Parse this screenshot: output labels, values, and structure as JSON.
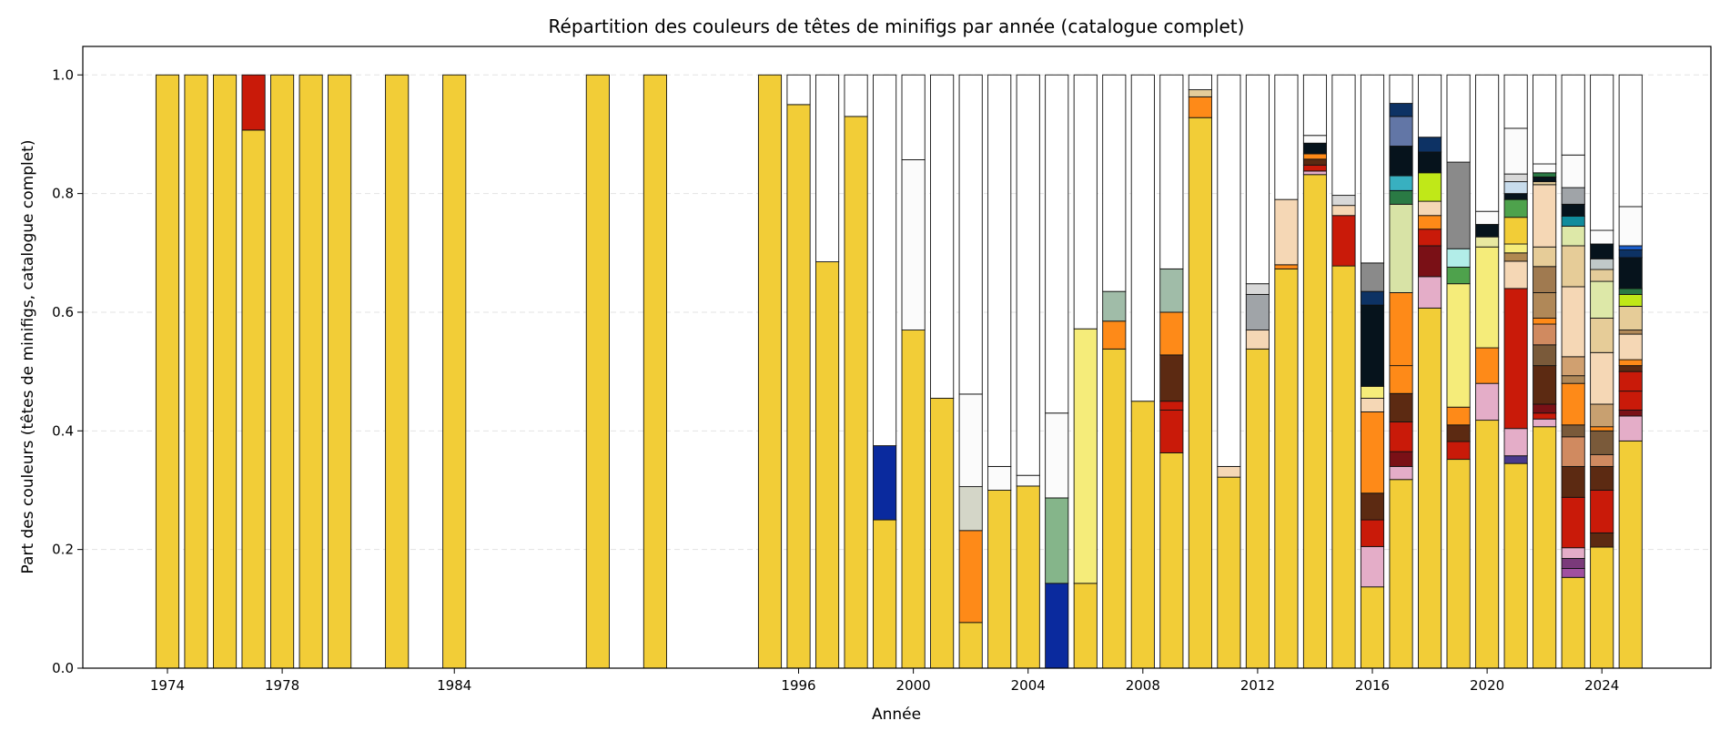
{
  "chart_data": {
    "type": "bar",
    "stacked": true,
    "title": "Répartition des couleurs de têtes de minifigs par année (catalogue complet)",
    "xlabel": "Année",
    "ylabel": "Part des couleurs (têtes de minifigs, catalogue complet)",
    "xlim": [
      1971.05,
      2027.8
    ],
    "ylim": [
      0,
      1.048
    ],
    "bar_width": 0.8,
    "xticks": [
      1974,
      1978,
      1984,
      1996,
      2000,
      2004,
      2008,
      2012,
      2016,
      2020,
      2024
    ],
    "yticks": [
      "0.0",
      "0.2",
      "0.4",
      "0.6",
      "0.8",
      "1.0"
    ],
    "grid": "horizontal dashed",
    "bars": [
      {
        "year": 1974,
        "segments": [
          [
            1.0,
            "#f2cd37"
          ]
        ]
      },
      {
        "year": 1975,
        "segments": [
          [
            1.0,
            "#f2cd37"
          ]
        ]
      },
      {
        "year": 1976,
        "segments": [
          [
            1.0,
            "#f2cd37"
          ]
        ]
      },
      {
        "year": 1977,
        "segments": [
          [
            0.907,
            "#f2cd37"
          ],
          [
            0.093,
            "#c91a09"
          ]
        ]
      },
      {
        "year": 1978,
        "segments": [
          [
            1.0,
            "#f2cd37"
          ]
        ]
      },
      {
        "year": 1979,
        "segments": [
          [
            1.0,
            "#f2cd37"
          ]
        ]
      },
      {
        "year": 1980,
        "segments": [
          [
            1.0,
            "#f2cd37"
          ]
        ]
      },
      {
        "year": 1982,
        "segments": [
          [
            1.0,
            "#f2cd37"
          ]
        ]
      },
      {
        "year": 1984,
        "segments": [
          [
            1.0,
            "#f2cd37"
          ]
        ]
      },
      {
        "year": 1989,
        "segments": [
          [
            1.0,
            "#f2cd37"
          ]
        ]
      },
      {
        "year": 1991,
        "segments": [
          [
            1.0,
            "#f2cd37"
          ]
        ]
      },
      {
        "year": 1995,
        "segments": [
          [
            1.0,
            "#f2cd37"
          ]
        ]
      },
      {
        "year": 1996,
        "segments": [
          [
            0.95,
            "#f2cd37"
          ],
          [
            0.05,
            "#ffffff"
          ]
        ]
      },
      {
        "year": 1997,
        "segments": [
          [
            0.685,
            "#f2cd37"
          ],
          [
            0.315,
            "#ffffff"
          ]
        ]
      },
      {
        "year": 1998,
        "segments": [
          [
            0.93,
            "#f2cd37"
          ],
          [
            0.07,
            "#ffffff"
          ]
        ]
      },
      {
        "year": 1999,
        "segments": [
          [
            0.25,
            "#f2cd37"
          ],
          [
            0.125,
            "#0a2a9e"
          ],
          [
            0.625,
            "#ffffff"
          ]
        ]
      },
      {
        "year": 2000,
        "segments": [
          [
            0.57,
            "#f2cd37"
          ],
          [
            0.287,
            "#fbfbfb"
          ],
          [
            0.143,
            "#ffffff"
          ]
        ]
      },
      {
        "year": 2001,
        "segments": [
          [
            0.455,
            "#f2cd37"
          ],
          [
            0.545,
            "#ffffff"
          ]
        ]
      },
      {
        "year": 2002,
        "segments": [
          [
            0.077,
            "#f2cd37"
          ],
          [
            0.155,
            "#fe8a18"
          ],
          [
            0.074,
            "#d4d6c8"
          ],
          [
            0.156,
            "#fbfbfb"
          ],
          [
            0.538,
            "#ffffff"
          ]
        ]
      },
      {
        "year": 2003,
        "segments": [
          [
            0.3,
            "#f2cd37"
          ],
          [
            0.04,
            "#fbfbfb"
          ],
          [
            0.66,
            "#ffffff"
          ]
        ]
      },
      {
        "year": 2004,
        "segments": [
          [
            0.307,
            "#f2cd37"
          ],
          [
            0.018,
            "#fbfbfb"
          ],
          [
            0.675,
            "#ffffff"
          ]
        ]
      },
      {
        "year": 2005,
        "segments": [
          [
            0.143,
            "#0a2a9e"
          ],
          [
            0.144,
            "#85b58a"
          ],
          [
            0.143,
            "#fbfbfb"
          ],
          [
            0.57,
            "#ffffff"
          ]
        ]
      },
      {
        "year": 2006,
        "segments": [
          [
            0.143,
            "#f2cd37"
          ],
          [
            0.429,
            "#f5ec7a"
          ],
          [
            0.428,
            "#ffffff"
          ]
        ]
      },
      {
        "year": 2007,
        "segments": [
          [
            0.538,
            "#f2cd37"
          ],
          [
            0.047,
            "#fe8a18"
          ],
          [
            0.05,
            "#a0bca8"
          ],
          [
            0.365,
            "#ffffff"
          ]
        ]
      },
      {
        "year": 2008,
        "segments": [
          [
            0.45,
            "#f2cd37"
          ],
          [
            0.55,
            "#ffffff"
          ]
        ]
      },
      {
        "year": 2009,
        "segments": [
          [
            0.363,
            "#f2cd37"
          ],
          [
            0.072,
            "#c91a09"
          ],
          [
            0.015,
            "#c91a09"
          ],
          [
            0.078,
            "#5c2a12"
          ],
          [
            0.072,
            "#fe8a18"
          ],
          [
            0.073,
            "#a0bca8"
          ],
          [
            0.327,
            "#ffffff"
          ]
        ]
      },
      {
        "year": 2010,
        "segments": [
          [
            0.928,
            "#f2cd37"
          ],
          [
            0.035,
            "#fe8a18"
          ],
          [
            0.012,
            "#e4cc9a"
          ],
          [
            0.025,
            "#ffffff"
          ]
        ]
      },
      {
        "year": 2011,
        "segments": [
          [
            0.322,
            "#f2cd37"
          ],
          [
            0.018,
            "#f5d7b5"
          ],
          [
            0.66,
            "#ffffff"
          ]
        ]
      },
      {
        "year": 2012,
        "segments": [
          [
            0.538,
            "#f2cd37"
          ],
          [
            0.032,
            "#f5d7b5"
          ],
          [
            0.06,
            "#a0a4a8"
          ],
          [
            0.018,
            "#d8d8d8"
          ],
          [
            0.352,
            "#ffffff"
          ]
        ]
      },
      {
        "year": 2013,
        "segments": [
          [
            0.673,
            "#f2cd37"
          ],
          [
            0.007,
            "#fe8a18"
          ],
          [
            0.11,
            "#f5d7b5"
          ],
          [
            0.21,
            "#ffffff"
          ]
        ]
      },
      {
        "year": 2014,
        "segments": [
          [
            0.832,
            "#f2cd37"
          ],
          [
            0.006,
            "#e4adc8"
          ],
          [
            0.01,
            "#c91a09"
          ],
          [
            0.01,
            "#5c2a12"
          ],
          [
            0.009,
            "#fe8a18"
          ],
          [
            0.018,
            "#06131c"
          ],
          [
            0.013,
            "#fbfbfb"
          ],
          [
            0.102,
            "#ffffff"
          ]
        ]
      },
      {
        "year": 2015,
        "segments": [
          [
            0.678,
            "#f2cd37"
          ],
          [
            0.085,
            "#c91a09"
          ],
          [
            0.017,
            "#f5d7b5"
          ],
          [
            0.017,
            "#d8d8d8"
          ],
          [
            0.203,
            "#ffffff"
          ]
        ]
      },
      {
        "year": 2016,
        "segments": [
          [
            0.137,
            "#f2cd37"
          ],
          [
            0.068,
            "#e4adc8"
          ],
          [
            0.045,
            "#c91a09"
          ],
          [
            0.045,
            "#5c2a12"
          ],
          [
            0.137,
            "#fe8a18"
          ],
          [
            0.023,
            "#f5d7b5"
          ],
          [
            0.02,
            "#f5ec7a"
          ],
          [
            0.137,
            "#06131c"
          ],
          [
            0.023,
            "#0d3264"
          ],
          [
            0.048,
            "#8a8a8a"
          ],
          [
            0.317,
            "#ffffff"
          ]
        ]
      },
      {
        "year": 2017,
        "segments": [
          [
            0.318,
            "#f2cd37"
          ],
          [
            0.022,
            "#e4adc8"
          ],
          [
            0.025,
            "#7a1016"
          ],
          [
            0.05,
            "#c91a09"
          ],
          [
            0.048,
            "#5c2a12"
          ],
          [
            0.047,
            "#fe8a18"
          ],
          [
            0.123,
            "#fe8a18"
          ],
          [
            0.149,
            "#d8e3a6"
          ],
          [
            0.023,
            "#2a7a44"
          ],
          [
            0.025,
            "#38b0c0"
          ],
          [
            0.05,
            "#06131c"
          ],
          [
            0.05,
            "#6276a6"
          ],
          [
            0.022,
            "#0d3264"
          ],
          [
            0.048,
            "#ffffff"
          ]
        ]
      },
      {
        "year": 2018,
        "segments": [
          [
            0.607,
            "#f2cd37"
          ],
          [
            0.053,
            "#e4adc8"
          ],
          [
            0.052,
            "#7a1016"
          ],
          [
            0.028,
            "#c91a09"
          ],
          [
            0.023,
            "#fe8a18"
          ],
          [
            0.024,
            "#f5d7b5"
          ],
          [
            0.048,
            "#c0e818"
          ],
          [
            0.035,
            "#06131c"
          ],
          [
            0.025,
            "#0d3264"
          ],
          [
            0.105,
            "#ffffff"
          ]
        ]
      },
      {
        "year": 2019,
        "segments": [
          [
            0.352,
            "#f2cd37"
          ],
          [
            0.03,
            "#c91a09"
          ],
          [
            0.028,
            "#5c2a12"
          ],
          [
            0.03,
            "#fe8a18"
          ],
          [
            0.208,
            "#f5ec7a"
          ],
          [
            0.028,
            "#4ea24c"
          ],
          [
            0.031,
            "#b2ede8"
          ],
          [
            0.146,
            "#8a8a8a"
          ],
          [
            0.147,
            "#ffffff"
          ]
        ]
      },
      {
        "year": 2020,
        "segments": [
          [
            0.418,
            "#f2cd37"
          ],
          [
            0.062,
            "#e4adc8"
          ],
          [
            0.06,
            "#fe8a18"
          ],
          [
            0.17,
            "#f5ec7a"
          ],
          [
            0.017,
            "#e8e8a0"
          ],
          [
            0.021,
            "#06131c"
          ],
          [
            0.022,
            "#fbfbfb"
          ],
          [
            0.23,
            "#ffffff"
          ]
        ]
      },
      {
        "year": 2021,
        "segments": [
          [
            0.345,
            "#f2cd37"
          ],
          [
            0.013,
            "#4a3a8c"
          ],
          [
            0.046,
            "#e4adc8"
          ],
          [
            0.236,
            "#c91a09"
          ],
          [
            0.046,
            "#f5d7b5"
          ],
          [
            0.014,
            "#b08850"
          ],
          [
            0.015,
            "#f5ec7a"
          ],
          [
            0.045,
            "#f2cd37"
          ],
          [
            0.03,
            "#4ea24c"
          ],
          [
            0.01,
            "#06131c"
          ],
          [
            0.02,
            "#c8dcec"
          ],
          [
            0.013,
            "#d8d8d8"
          ],
          [
            0.077,
            "#fbfbfb"
          ],
          [
            0.09,
            "#ffffff"
          ]
        ]
      },
      {
        "year": 2022,
        "segments": [
          [
            0.407,
            "#f2cd37"
          ],
          [
            0.013,
            "#e4adc8"
          ],
          [
            0.01,
            "#c91a09"
          ],
          [
            0.015,
            "#7a1016"
          ],
          [
            0.065,
            "#5c2a12"
          ],
          [
            0.035,
            "#7a5a3a"
          ],
          [
            0.035,
            "#d08a60"
          ],
          [
            0.01,
            "#fe8a18"
          ],
          [
            0.043,
            "#b08858"
          ],
          [
            0.044,
            "#a07a50"
          ],
          [
            0.033,
            "#e6cc98"
          ],
          [
            0.105,
            "#f5d7b5"
          ],
          [
            0.005,
            "#e4cc9a"
          ],
          [
            0.008,
            "#06131c"
          ],
          [
            0.007,
            "#2a7a44"
          ],
          [
            0.015,
            "#fbfbfb"
          ],
          [
            0.15,
            "#ffffff"
          ]
        ]
      },
      {
        "year": 2023,
        "segments": [
          [
            0.153,
            "#f2cd37"
          ],
          [
            0.015,
            "#a050a0"
          ],
          [
            0.017,
            "#7a3a7a"
          ],
          [
            0.018,
            "#e4adc8"
          ],
          [
            0.085,
            "#c91a09"
          ],
          [
            0.052,
            "#5c2a12"
          ],
          [
            0.05,
            "#d08a60"
          ],
          [
            0.02,
            "#7a5a3a"
          ],
          [
            0.07,
            "#fe8a18"
          ],
          [
            0.013,
            "#b08858"
          ],
          [
            0.032,
            "#d0a070"
          ],
          [
            0.118,
            "#f5d7b5"
          ],
          [
            0.069,
            "#e6cc98"
          ],
          [
            0.033,
            "#dde8a8"
          ],
          [
            0.017,
            "#108c9c"
          ],
          [
            0.02,
            "#06131c"
          ],
          [
            0.028,
            "#a0a4a8"
          ],
          [
            0.055,
            "#fbfbfb"
          ],
          [
            0.135,
            "#ffffff"
          ]
        ]
      },
      {
        "year": 2024,
        "segments": [
          [
            0.204,
            "#f2cd37"
          ],
          [
            0.024,
            "#5c2a12"
          ],
          [
            0.072,
            "#c91a09"
          ],
          [
            0.04,
            "#5c2a12"
          ],
          [
            0.02,
            "#d08a60"
          ],
          [
            0.04,
            "#7a5a3a"
          ],
          [
            0.007,
            "#fe8a18"
          ],
          [
            0.038,
            "#c8a070"
          ],
          [
            0.087,
            "#f5d7b5"
          ],
          [
            0.058,
            "#e6cc98"
          ],
          [
            0.062,
            "#dde8a8"
          ],
          [
            0.02,
            "#e4cc9a"
          ],
          [
            0.018,
            "#c0c8c8"
          ],
          [
            0.025,
            "#06131c"
          ],
          [
            0.023,
            "#fbfbfb"
          ],
          [
            0.262,
            "#ffffff"
          ]
        ]
      },
      {
        "year": 2025,
        "segments": [
          [
            0.383,
            "#f2cd37"
          ],
          [
            0.042,
            "#e4adc8"
          ],
          [
            0.01,
            "#7a1016"
          ],
          [
            0.032,
            "#c91a09"
          ],
          [
            0.033,
            "#c91a09"
          ],
          [
            0.01,
            "#5c2a12"
          ],
          [
            0.01,
            "#fe8a18"
          ],
          [
            0.043,
            "#f5d7b5"
          ],
          [
            0.007,
            "#b08858"
          ],
          [
            0.04,
            "#e6cc98"
          ],
          [
            0.02,
            "#c0e818"
          ],
          [
            0.01,
            "#2a7a44"
          ],
          [
            0.052,
            "#06131c"
          ],
          [
            0.013,
            "#0d3264"
          ],
          [
            0.007,
            "#1a5cc8"
          ],
          [
            0.066,
            "#fbfbfb"
          ],
          [
            0.222,
            "#ffffff"
          ]
        ]
      }
    ]
  }
}
